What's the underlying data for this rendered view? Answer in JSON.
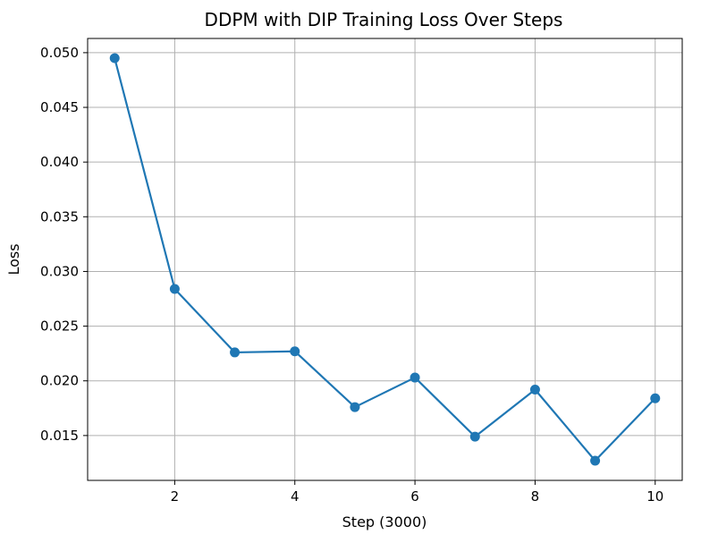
{
  "chart_data": {
    "type": "line",
    "title": "DDPM with DIP Training Loss Over Steps",
    "xlabel": "Step (3000)",
    "ylabel": "Loss",
    "x": [
      1,
      2,
      3,
      4,
      5,
      6,
      7,
      8,
      9,
      10
    ],
    "series": [
      {
        "values": [
          0.0495,
          0.0284,
          0.0226,
          0.0227,
          0.0176,
          0.0203,
          0.0149,
          0.0192,
          0.0127,
          0.0184
        ],
        "color": "#1f77b4",
        "marker": "circle"
      }
    ],
    "xlim": [
      0.55,
      10.45
    ],
    "ylim": [
      0.0109,
      0.0513
    ],
    "xticks": [
      2,
      4,
      6,
      8,
      10
    ],
    "xtick_labels": [
      "2",
      "4",
      "6",
      "8",
      "10"
    ],
    "yticks": [
      0.015,
      0.02,
      0.025,
      0.03,
      0.035,
      0.04,
      0.045,
      0.05
    ],
    "ytick_labels": [
      "0.015",
      "0.020",
      "0.025",
      "0.030",
      "0.035",
      "0.040",
      "0.045",
      "0.050"
    ],
    "grid": true,
    "grid_color": "#b0b0b0"
  }
}
